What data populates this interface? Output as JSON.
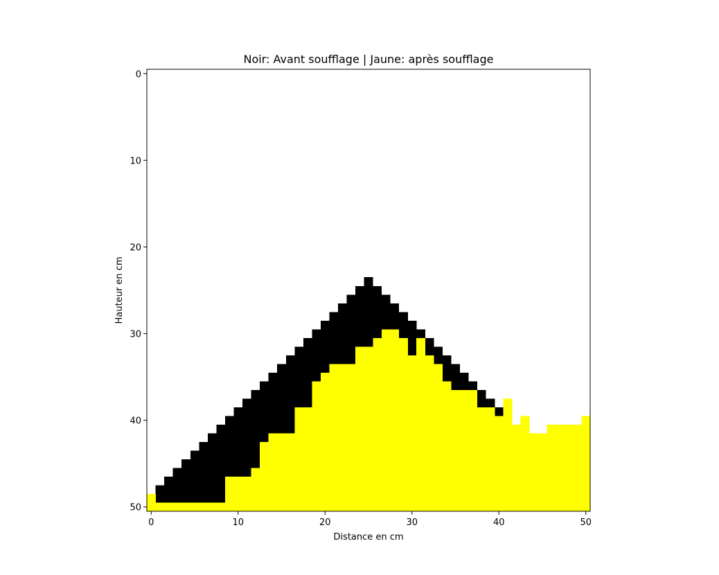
{
  "chart_data": {
    "type": "heatmap",
    "title": "Noir: Avant soufflage | Jaune: après soufflage",
    "xlabel": "Distance en cm",
    "ylabel": "Hauteur en cm",
    "x_range": [
      -0.5,
      50.5
    ],
    "y_range": [
      50.5,
      -0.5
    ],
    "x_ticks": [
      0,
      10,
      20,
      30,
      40,
      50
    ],
    "y_ticks": [
      0,
      10,
      20,
      30,
      40,
      50
    ],
    "grid": false,
    "colors": {
      "before": "#000000",
      "after": "#ffff00",
      "empty": "#ffffff"
    },
    "series": [
      {
        "name": "Noir: Avant soufflage",
        "color": "#000000",
        "surface_row_by_column": [
          49,
          48,
          47,
          46,
          45,
          44,
          43,
          42,
          41,
          40,
          39,
          38,
          37,
          36,
          35,
          34,
          33,
          32,
          31,
          30,
          29,
          28,
          27,
          26,
          25,
          24,
          25,
          26,
          27,
          28,
          29,
          30,
          31,
          32,
          33,
          34,
          35,
          36,
          37,
          38,
          39,
          49,
          49,
          49,
          49,
          49,
          49,
          49,
          49,
          49,
          49
        ]
      },
      {
        "name": "Jaune: après soufflage",
        "color": "#ffff00",
        "surface_row_by_column": [
          49,
          50,
          50,
          50,
          50,
          50,
          50,
          50,
          50,
          47,
          47,
          47,
          46,
          43,
          42,
          42,
          42,
          39,
          39,
          36,
          35,
          34,
          34,
          34,
          32,
          32,
          31,
          30,
          30,
          31,
          33,
          31,
          33,
          34,
          36,
          37,
          37,
          37,
          39,
          39,
          40,
          38,
          41,
          40,
          42,
          42,
          41,
          41,
          41,
          41,
          40
        ]
      }
    ]
  }
}
